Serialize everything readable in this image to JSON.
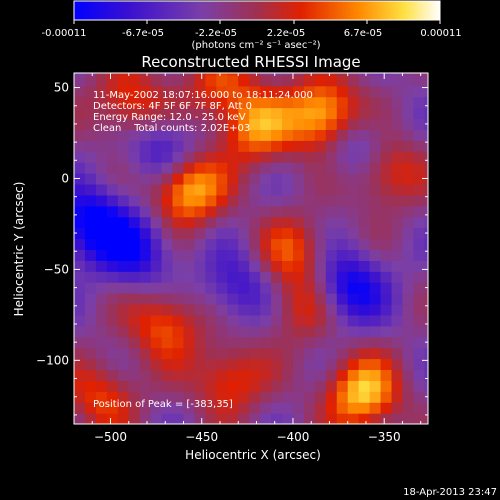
{
  "colorbar": {
    "tick_labels": [
      "-0.00011",
      "-6.7e-05",
      "-2.2e-05",
      "2.2e-05",
      "6.7e-05",
      "0.00011"
    ],
    "unit_label": "(photons cm⁻² s⁻¹ asec⁻²)",
    "colors": [
      "#0000ff",
      "#4000c8",
      "#6f3fb0",
      "#8a46a0",
      "#b02020",
      "#ff3000",
      "#ff8c00",
      "#ffff40",
      "#ffffff"
    ]
  },
  "chart_data": {
    "type": "heatmap",
    "title": "Reconstructed RHESSI Image",
    "xlabel": "Heliocentric X (arcsec)",
    "ylabel": "Heliocentric Y (arcsec)",
    "xlim": [
      -520,
      -326
    ],
    "ylim": [
      -135,
      58
    ],
    "x_ticks": [
      -500,
      -450,
      -400,
      -350
    ],
    "y_ticks": [
      -100,
      -50,
      0,
      50
    ],
    "annotations": [
      "11-May-2002 18:07:16.000 to 18:11:24.000",
      "Detectors: 4F 5F 6F 7F 8F, Att 0",
      "Energy Range: 12.0 - 25.0 keV",
      "Clean    Total counts: 2.02E+03"
    ],
    "peak_label": "Position of Peak = [-383,35]",
    "peak_position": [
      -383,
      35
    ],
    "sources": [
      {
        "x": -383,
        "y": 35,
        "amp": 1.0
      },
      {
        "x": -458,
        "y": -5,
        "amp": 0.95
      },
      {
        "x": -362,
        "y": -118,
        "amp": 0.9
      },
      {
        "x": -420,
        "y": 28,
        "amp": 0.7
      },
      {
        "x": -470,
        "y": -80,
        "amp": 0.6
      },
      {
        "x": -490,
        "y": 42,
        "amp": 0.55
      },
      {
        "x": -435,
        "y": -110,
        "amp": 0.55
      },
      {
        "x": -350,
        "y": 5,
        "amp": 0.6
      },
      {
        "x": -400,
        "y": -40,
        "amp": 0.5
      },
      {
        "x": -505,
        "y": -120,
        "amp": 0.5
      },
      {
        "x": -440,
        "y": 50,
        "amp": 0.5
      },
      {
        "x": -395,
        "y": -70,
        "amp": 0.45
      },
      {
        "x": -485,
        "y": -40,
        "amp": -0.55
      },
      {
        "x": -430,
        "y": -60,
        "amp": -0.45
      },
      {
        "x": -370,
        "y": -60,
        "amp": -0.7
      },
      {
        "x": -510,
        "y": -25,
        "amp": -0.8
      },
      {
        "x": -470,
        "y": 15,
        "amp": -0.5
      },
      {
        "x": -365,
        "y": 18,
        "amp": -0.5
      }
    ]
  },
  "footer": {
    "timestamp": "18-Apr-2013 23:47"
  }
}
